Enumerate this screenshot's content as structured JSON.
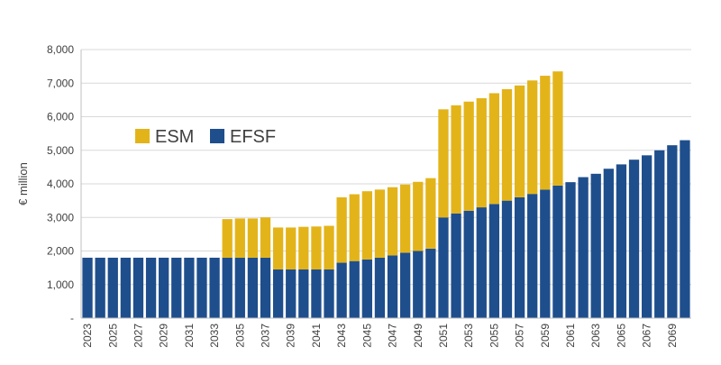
{
  "chart_data": {
    "type": "bar",
    "stacked": true,
    "title": "",
    "xlabel": "",
    "ylabel": "€ million",
    "ylim": [
      0,
      8000
    ],
    "yticks": [
      {
        "value": 0,
        "label": "-"
      },
      {
        "value": 1000,
        "label": "1,000"
      },
      {
        "value": 2000,
        "label": "2,000"
      },
      {
        "value": 3000,
        "label": "3,000"
      },
      {
        "value": 4000,
        "label": "4,000"
      },
      {
        "value": 5000,
        "label": "5,000"
      },
      {
        "value": 6000,
        "label": "6,000"
      },
      {
        "value": 7000,
        "label": "7,000"
      },
      {
        "value": 8000,
        "label": "8,000"
      }
    ],
    "grid": true,
    "legend_position": "left-middle",
    "categories": [
      "2023",
      "2024",
      "2025",
      "2026",
      "2027",
      "2028",
      "2029",
      "2030",
      "2031",
      "2032",
      "2033",
      "2034",
      "2035",
      "2036",
      "2037",
      "2038",
      "2039",
      "2040",
      "2041",
      "2042",
      "2043",
      "2044",
      "2045",
      "2046",
      "2047",
      "2048",
      "2049",
      "2050",
      "2051",
      "2052",
      "2053",
      "2054",
      "2055",
      "2056",
      "2057",
      "2058",
      "2059",
      "2060",
      "2061",
      "2062",
      "2063",
      "2064",
      "2065",
      "2066",
      "2067",
      "2068",
      "2069",
      "2070"
    ],
    "xtick_labels": [
      "2023",
      "2025",
      "2027",
      "2029",
      "2031",
      "2033",
      "2035",
      "2037",
      "2039",
      "2041",
      "2043",
      "2045",
      "2047",
      "2049",
      "2051",
      "2053",
      "2055",
      "2057",
      "2059",
      "2061",
      "2063",
      "2065",
      "2067",
      "2069"
    ],
    "series": [
      {
        "name": "EFSF",
        "color": "#1F4E8C",
        "values": [
          1800,
          1800,
          1800,
          1800,
          1800,
          1800,
          1800,
          1800,
          1800,
          1800,
          1800,
          1800,
          1800,
          1800,
          1800,
          1450,
          1450,
          1450,
          1450,
          1450,
          1650,
          1700,
          1750,
          1800,
          1870,
          1950,
          2000,
          2070,
          3000,
          3120,
          3200,
          3300,
          3400,
          3500,
          3600,
          3700,
          3830,
          3950,
          4050,
          4200,
          4300,
          4450,
          4580,
          4720,
          4850,
          5000,
          5150,
          5300
        ]
      },
      {
        "name": "ESM",
        "color": "#E3B41A",
        "values": [
          0,
          0,
          0,
          0,
          0,
          0,
          0,
          0,
          0,
          0,
          0,
          1150,
          1170,
          1170,
          1200,
          1250,
          1250,
          1270,
          1280,
          1300,
          1950,
          1990,
          2030,
          2030,
          2030,
          2030,
          2060,
          2100,
          3220,
          3220,
          3250,
          3250,
          3300,
          3320,
          3330,
          3380,
          3390,
          3400,
          0,
          0,
          0,
          0,
          0,
          0,
          0,
          0,
          0,
          0
        ]
      }
    ]
  }
}
